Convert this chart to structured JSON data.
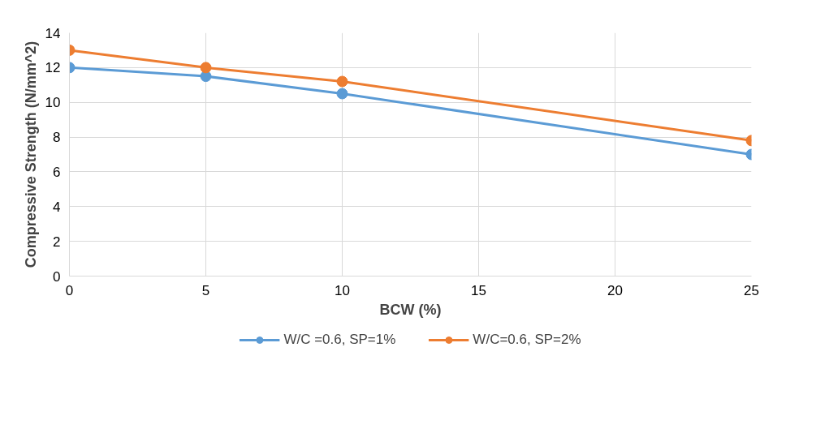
{
  "chart_data": {
    "type": "line",
    "xlabel": "BCW (%)",
    "ylabel": "Compressive Strength (N/mm^2)",
    "x": [
      0,
      5,
      10,
      25
    ],
    "series": [
      {
        "name": "W/C =0.6, SP=1%",
        "color": "#5b9bd5",
        "values": [
          12,
          11.5,
          10.5,
          7
        ]
      },
      {
        "name": "W/C=0.6, SP=2%",
        "color": "#ed7d31",
        "values": [
          13,
          12,
          11.2,
          7.8
        ]
      }
    ],
    "xlim": [
      0,
      25
    ],
    "xticks": [
      0,
      5,
      10,
      15,
      20,
      25
    ],
    "ylim": [
      0,
      14
    ],
    "yticks": [
      0,
      2,
      4,
      6,
      8,
      10,
      12,
      14
    ],
    "grid": true,
    "legend": "bottom",
    "marker": "circle",
    "line_style": "solid"
  }
}
